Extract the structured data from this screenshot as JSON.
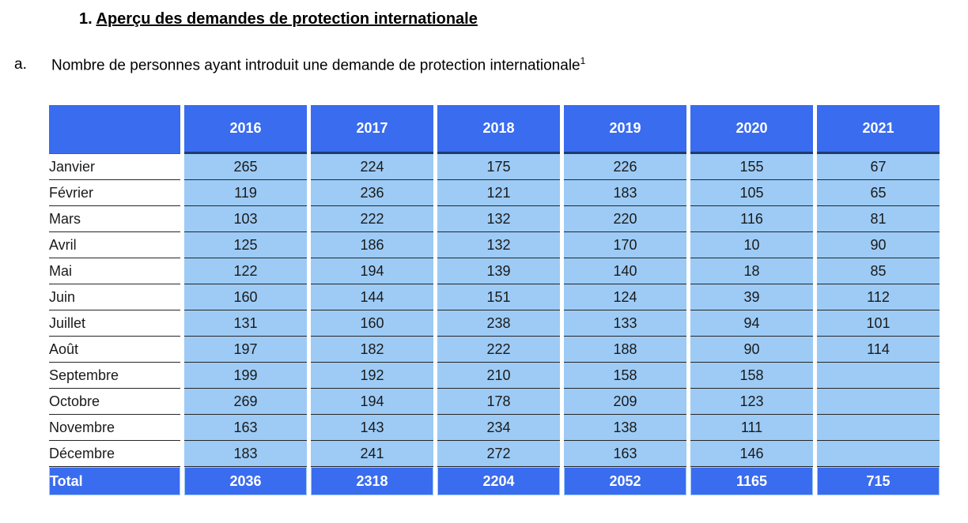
{
  "page": {
    "heading_number": "1.",
    "heading": "Aperçu des demandes de protection internationale",
    "item_letter": "a.",
    "item_text": "Nombre de personnes ayant introduit une demande de protection internationale",
    "footnote_ref": "1"
  },
  "table": {
    "corner_label": "",
    "years": [
      "2016",
      "2017",
      "2018",
      "2019",
      "2020",
      "2021"
    ],
    "rows": [
      {
        "month": "Janvier",
        "values": [
          "265",
          "224",
          "175",
          "226",
          "155",
          "67"
        ]
      },
      {
        "month": "Février",
        "values": [
          "119",
          "236",
          "121",
          "183",
          "105",
          "65"
        ]
      },
      {
        "month": "Mars",
        "values": [
          "103",
          "222",
          "132",
          "220",
          "116",
          "81"
        ]
      },
      {
        "month": "Avril",
        "values": [
          "125",
          "186",
          "132",
          "170",
          "10",
          "90"
        ]
      },
      {
        "month": "Mai",
        "values": [
          "122",
          "194",
          "139",
          "140",
          "18",
          "85"
        ]
      },
      {
        "month": "Juin",
        "values": [
          "160",
          "144",
          "151",
          "124",
          "39",
          "112"
        ]
      },
      {
        "month": "Juillet",
        "values": [
          "131",
          "160",
          "238",
          "133",
          "94",
          "101"
        ]
      },
      {
        "month": "Août",
        "values": [
          "197",
          "182",
          "222",
          "188",
          "90",
          "114"
        ]
      },
      {
        "month": "Septembre",
        "values": [
          "199",
          "192",
          "210",
          "158",
          "158",
          ""
        ]
      },
      {
        "month": "Octobre",
        "values": [
          "269",
          "194",
          "178",
          "209",
          "123",
          ""
        ]
      },
      {
        "month": "Novembre",
        "values": [
          "163",
          "143",
          "234",
          "138",
          "111",
          ""
        ]
      },
      {
        "month": "Décembre",
        "values": [
          "183",
          "241",
          "272",
          "163",
          "146",
          ""
        ]
      }
    ],
    "total_label": "Total",
    "totals": [
      "2036",
      "2318",
      "2204",
      "2052",
      "1165",
      "715"
    ]
  },
  "colors": {
    "header_blue": "#3a6cef",
    "light_blue": "#9dcbf5",
    "navy_border": "#1f3c6e"
  },
  "layout_hints": {
    "month_col_width": 166,
    "year_col_width": 155
  }
}
